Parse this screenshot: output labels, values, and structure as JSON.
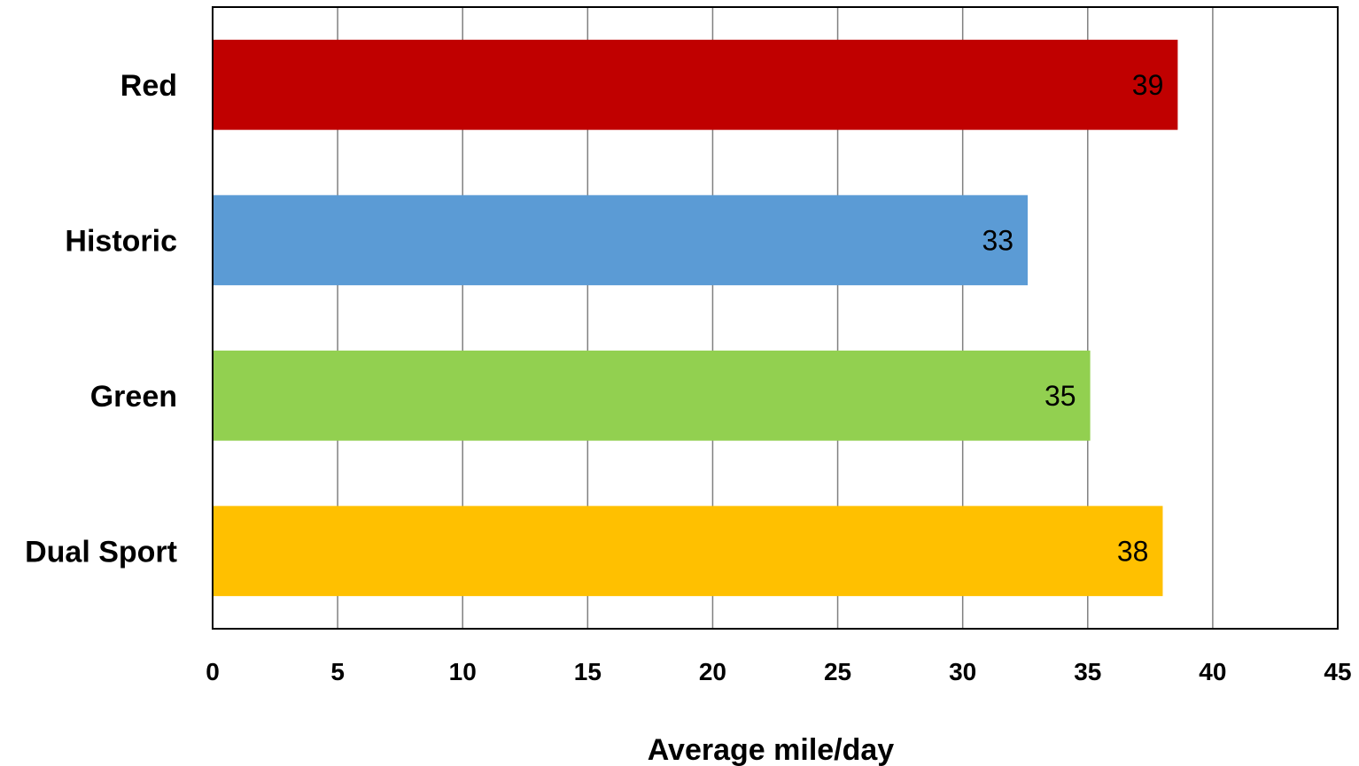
{
  "chart_data": {
    "type": "bar",
    "orientation": "horizontal",
    "categories": [
      "Red",
      "Historic",
      "Green",
      "Dual Sport"
    ],
    "values": [
      38.6,
      32.6,
      35.1,
      38.0
    ],
    "data_labels": [
      "39",
      "33",
      "35",
      "38"
    ],
    "colors": [
      "#C00000",
      "#5B9BD5",
      "#92D050",
      "#FFC000"
    ],
    "xlabel": "Average mile/day",
    "ylabel": "",
    "title": "",
    "xlim": [
      0,
      45
    ],
    "x_ticks": [
      0,
      5,
      10,
      15,
      20,
      25,
      30,
      35,
      40,
      45
    ],
    "grid": "vertical",
    "legend": "none"
  }
}
